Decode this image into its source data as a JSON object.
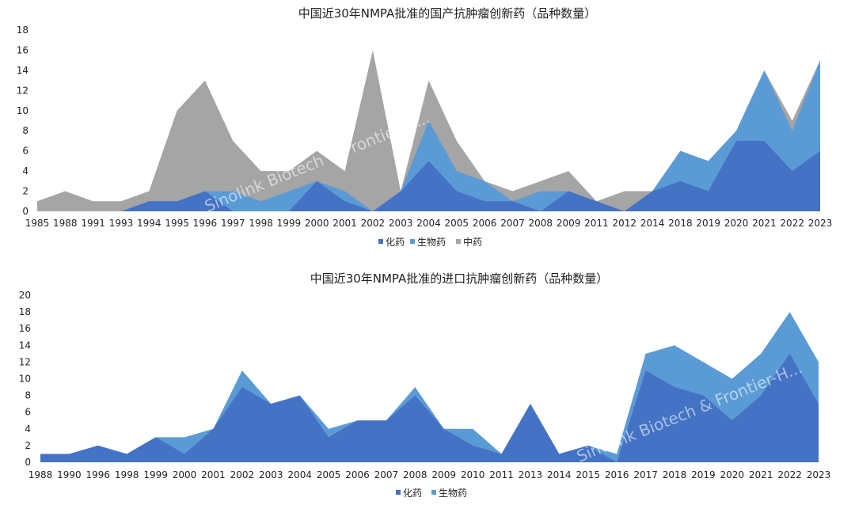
{
  "chart_data": [
    {
      "type": "area",
      "title": "中国近30年NMPA批准的国产抗肿瘤创新药（品种数量）",
      "categories": [
        "1985",
        "1988",
        "1991",
        "1993",
        "1994",
        "1995",
        "1996",
        "1997",
        "1998",
        "1999",
        "2000",
        "2001",
        "2002",
        "2003",
        "2004",
        "2005",
        "2006",
        "2007",
        "2008",
        "2009",
        "2011",
        "2012",
        "2014",
        "2018",
        "2019",
        "2020",
        "2021",
        "2022",
        "2023"
      ],
      "ylim": [
        0,
        18
      ],
      "yticks": [
        "0",
        "2",
        "4",
        "6",
        "8",
        "10",
        "12",
        "14",
        "16",
        "18"
      ],
      "series": [
        {
          "name": "化药",
          "color": "#4472C4",
          "values": [
            0,
            0,
            0,
            0,
            1,
            1,
            2,
            0,
            0,
            0,
            3,
            1,
            0,
            2,
            5,
            2,
            1,
            1,
            0,
            2,
            1,
            0,
            2,
            3,
            2,
            7,
            7,
            4,
            6
          ]
        },
        {
          "name": "生物药",
          "color": "#5B9BD5",
          "values": [
            0,
            0,
            0,
            0,
            0,
            0,
            0,
            2,
            1,
            2,
            0,
            1,
            0,
            0,
            4,
            2,
            2,
            0,
            2,
            0,
            0,
            0,
            0,
            3,
            3,
            1,
            7,
            4,
            9
          ]
        },
        {
          "name": "中药",
          "color": "#A5A5A5",
          "values": [
            1,
            2,
            1,
            1,
            1,
            9,
            11,
            5,
            3,
            2,
            3,
            2,
            16,
            0,
            4,
            3,
            0,
            1,
            1,
            2,
            0,
            2,
            0,
            0,
            0,
            0,
            0,
            1,
            0
          ]
        }
      ],
      "legend": "bottom-center",
      "watermark": "Sinolink Biotech & Frontier-H..."
    },
    {
      "type": "area",
      "title": "中国近30年NMPA批准的进口抗肿瘤创新药（品种数量）",
      "categories": [
        "1988",
        "1990",
        "1996",
        "1998",
        "1999",
        "2000",
        "2001",
        "2002",
        "2003",
        "2004",
        "2005",
        "2006",
        "2007",
        "2008",
        "2009",
        "2010",
        "2011",
        "2013",
        "2014",
        "2015",
        "2016",
        "2017",
        "2018",
        "2019",
        "2020",
        "2021",
        "2022",
        "2023"
      ],
      "ylim": [
        0,
        20
      ],
      "yticks": [
        "0",
        "2",
        "4",
        "6",
        "8",
        "10",
        "12",
        "14",
        "16",
        "18",
        "20"
      ],
      "series": [
        {
          "name": "化药",
          "color": "#4472C4",
          "values": [
            1,
            1,
            2,
            1,
            3,
            1,
            4,
            9,
            7,
            8,
            3,
            5,
            5,
            8,
            4,
            2,
            1,
            7,
            1,
            2,
            0,
            11,
            9,
            8,
            5,
            8,
            13,
            7
          ]
        },
        {
          "name": "生物药",
          "color": "#5B9BD5",
          "values": [
            0,
            0,
            0,
            0,
            0,
            2,
            0,
            2,
            0,
            0,
            1,
            0,
            0,
            1,
            0,
            2,
            0,
            0,
            0,
            0,
            1,
            2,
            5,
            4,
            5,
            5,
            5,
            5
          ]
        }
      ],
      "legend": "bottom-center",
      "watermark": "Sinolink Biotech & Frontier-H..."
    }
  ]
}
